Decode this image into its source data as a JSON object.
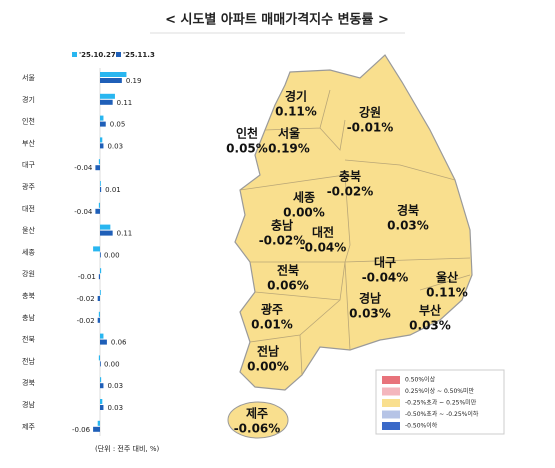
{
  "title": "< 시도별 아파트 매매가격지수 변동률 >",
  "chart_data": {
    "type": "hbar",
    "categories": [
      "서울",
      "경기",
      "인천",
      "부산",
      "대구",
      "광주",
      "대전",
      "울산",
      "세종",
      "강원",
      "충북",
      "충남",
      "전북",
      "전남",
      "경북",
      "경남",
      "제주"
    ],
    "series": [
      {
        "name": "'25.10.27",
        "color": "#29b6f0",
        "values": [
          0.23,
          0.13,
          0.03,
          0.02,
          -0.01,
          0.0,
          -0.01,
          0.09,
          -0.06,
          0.01,
          0.0,
          -0.01,
          0.03,
          -0.01,
          0.01,
          0.02,
          -0.02
        ]
      },
      {
        "name": "'25.11.3",
        "color": "#1f5fb8",
        "values": [
          0.19,
          0.11,
          0.05,
          0.03,
          -0.04,
          0.01,
          -0.04,
          0.11,
          0.0,
          -0.01,
          -0.02,
          -0.02,
          0.06,
          0.0,
          0.03,
          0.03,
          -0.06
        ],
        "value_labels": [
          "0.19",
          "0.11",
          "0.05",
          "0.03",
          "-0.04",
          "0.01",
          "-0.04",
          "0.11",
          "0.00",
          "-0.01",
          "-0.02",
          "-0.02",
          "0.06",
          "0.00",
          "0.03",
          "0.03",
          "-0.06"
        ]
      }
    ],
    "note": "(단위 : 전주 대비, %)"
  },
  "map": {
    "regions": [
      {
        "name": "경기",
        "value": "0.11%"
      },
      {
        "name": "강원",
        "value": "-0.01%"
      },
      {
        "name": "인천",
        "value": "0.05%"
      },
      {
        "name": "서울",
        "value": "0.19%"
      },
      {
        "name": "충북",
        "value": "-0.02%"
      },
      {
        "name": "세종",
        "value": "0.00%"
      },
      {
        "name": "경북",
        "value": "0.03%"
      },
      {
        "name": "충남",
        "value": "-0.02%"
      },
      {
        "name": "대전",
        "value": "-0.04%"
      },
      {
        "name": "대구",
        "value": "-0.04%"
      },
      {
        "name": "울산",
        "value": "0.11%"
      },
      {
        "name": "전북",
        "value": "0.06%"
      },
      {
        "name": "경남",
        "value": "0.03%"
      },
      {
        "name": "부산",
        "value": "0.03%"
      },
      {
        "name": "광주",
        "value": "0.01%"
      },
      {
        "name": "전남",
        "value": "0.00%"
      },
      {
        "name": "제주",
        "value": "-0.06%"
      }
    ],
    "legend": [
      {
        "label": "0.50%이상",
        "color": "#e8737b"
      },
      {
        "label": "0.25%이상 ~ 0.50%미만",
        "color": "#f4b6bd"
      },
      {
        "label": "-0.25%초과 ~ 0.25%미만",
        "color": "#f9df8e"
      },
      {
        "label": "-0.50%초과 ~ -0.25%이하",
        "color": "#b6c4e6"
      },
      {
        "label": "-0.50%이하",
        "color": "#3a69c8"
      }
    ]
  }
}
